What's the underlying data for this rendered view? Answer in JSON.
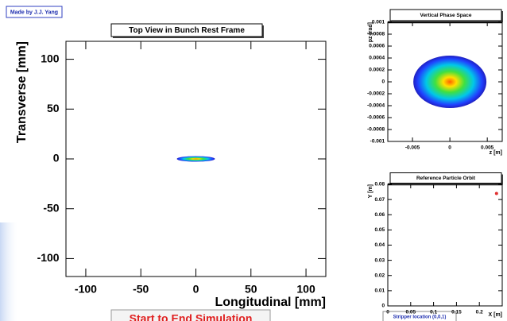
{
  "credit": "Made by J.J. Yang",
  "chart_data": [
    {
      "type": "colz",
      "title": "Top View in Bunch Rest Frame",
      "xlabel": "Longitudinal [mm]",
      "ylabel": "Transverse [mm]",
      "xlim": [
        -118,
        118
      ],
      "xticks": [
        -100,
        -50,
        0,
        50,
        100
      ],
      "ylim": [
        -118,
        118
      ],
      "yticks": [
        -100,
        -50,
        0,
        50,
        100
      ]
    },
    {
      "type": "colz",
      "title": "Vertical Phase Space",
      "xlabel": "z [m]",
      "ylabel": "pz [rad]",
      "xlim": [
        -0.0083,
        0.007
      ],
      "xticks": [
        -0.005,
        0,
        0.005
      ],
      "ylim": [
        -0.001,
        0.001
      ],
      "yticks": [
        -0.001,
        -0.0008,
        -0.0006,
        -0.0004,
        -0.0002,
        0,
        0.0002,
        0.0004,
        0.0006,
        0.0008,
        0.001
      ]
    },
    {
      "type": "scatter",
      "title": "Reference Particle Orbit",
      "xlabel": "X [m]",
      "ylabel": "Y [m]",
      "xlim": [
        0,
        0.25
      ],
      "xticks": [
        0,
        0.05,
        0.1,
        0.15,
        0.2
      ],
      "ylim": [
        0,
        0.08
      ],
      "yticks": [
        0,
        0.01,
        0.02,
        0.03,
        0.04,
        0.05,
        0.06,
        0.07,
        0.08
      ],
      "x": [
        0.2375
      ],
      "values": [
        0.074
      ],
      "color": "#e03030"
    }
  ],
  "button": "Start to End Simulation",
  "footer_note": "Stripper location (0,0,1)"
}
